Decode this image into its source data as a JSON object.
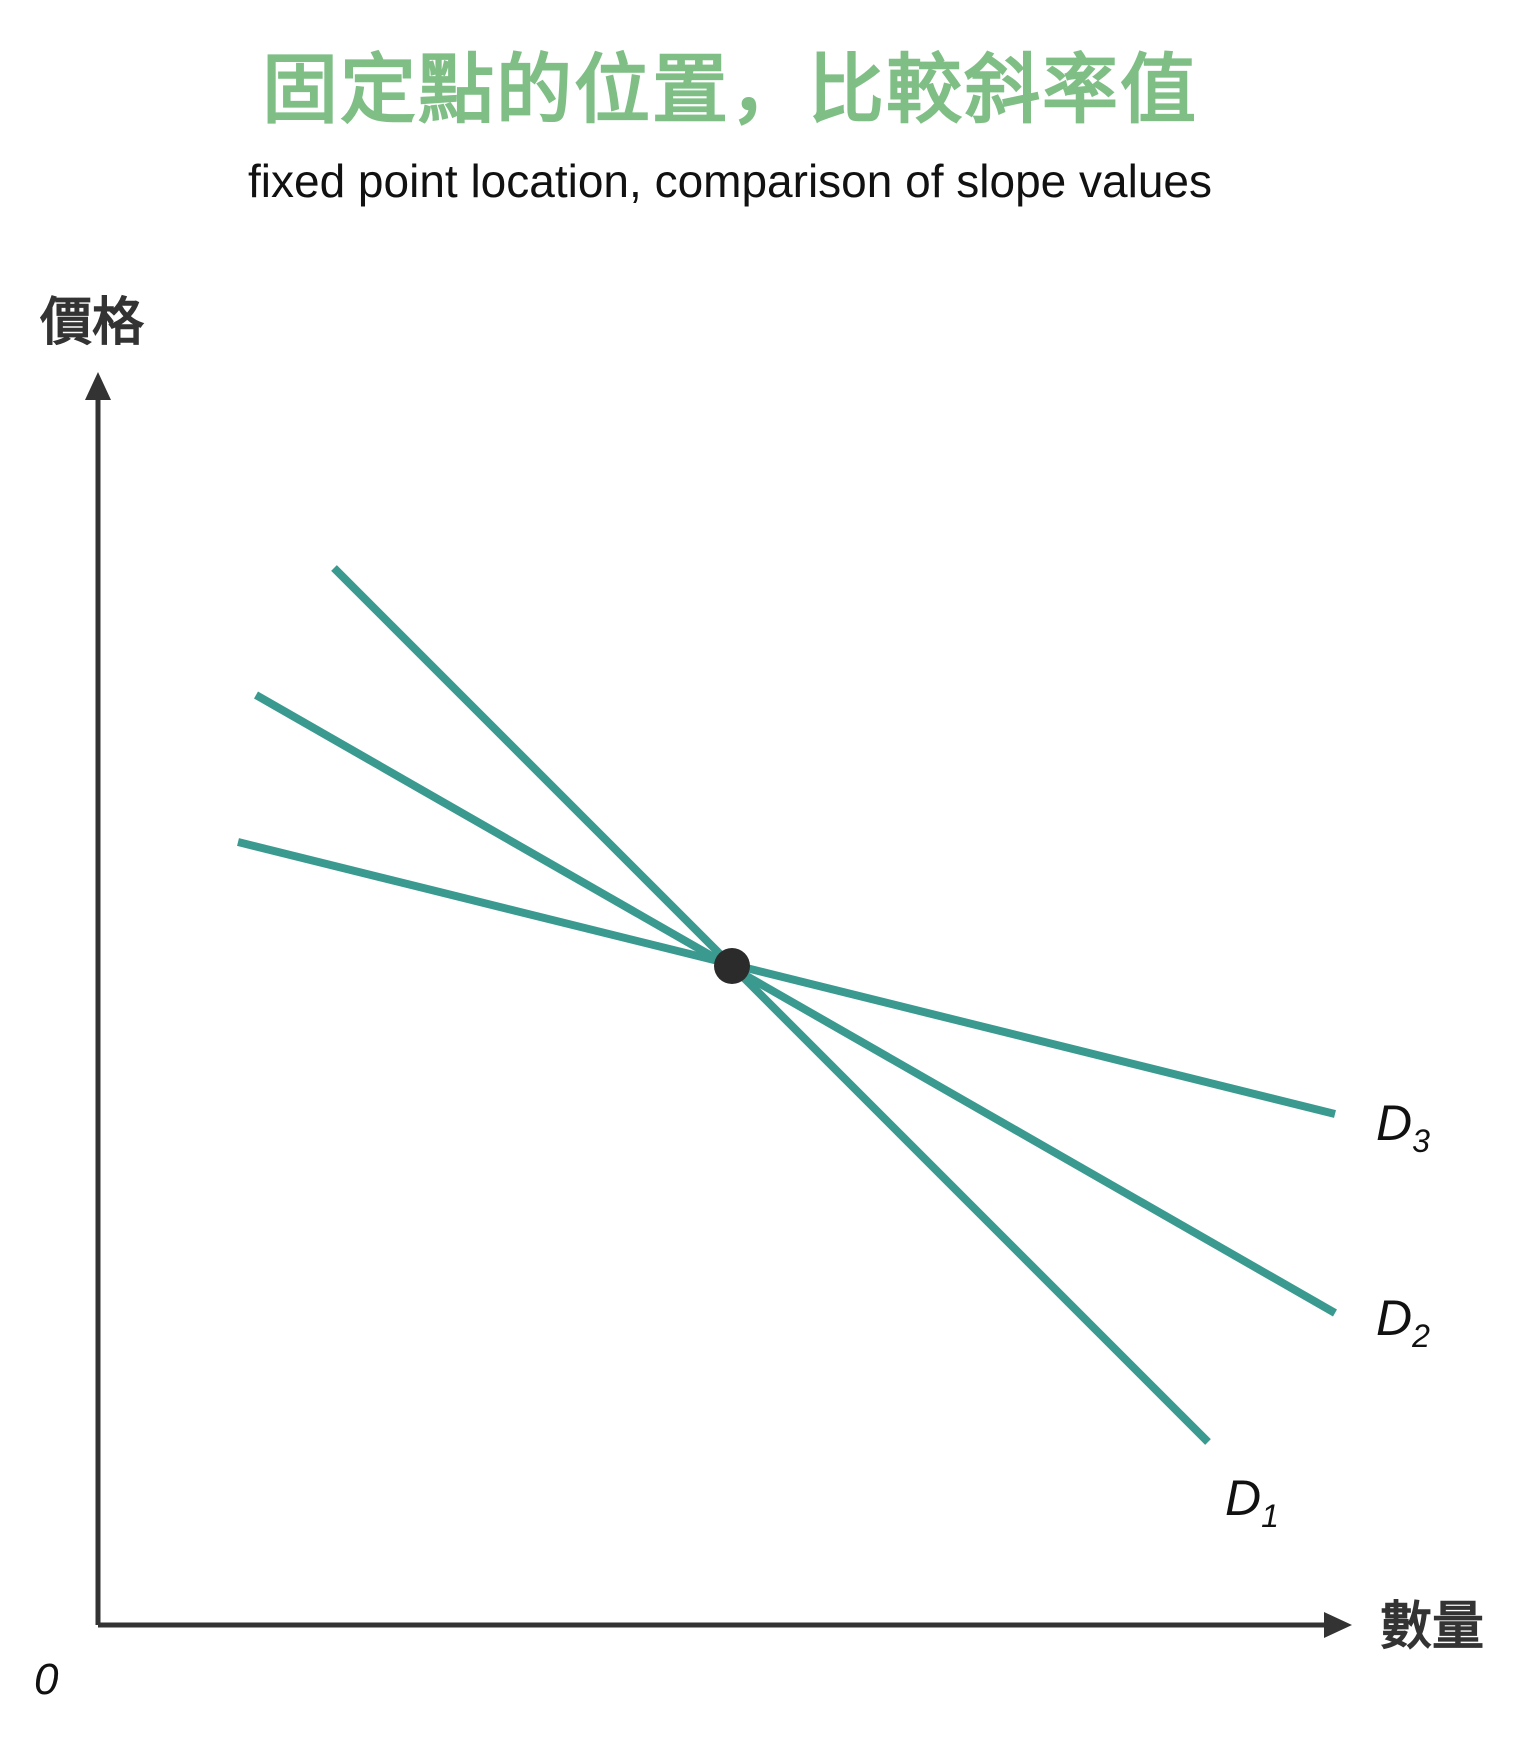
{
  "title": "固定點的位置，比較斜率值",
  "subtitle": "fixed point location, comparison of slope values",
  "y_axis_label": "價格",
  "x_axis_label": "數量",
  "origin_label": "0",
  "colors": {
    "title": "#7fbf86",
    "curve": "#3a9a90",
    "axis": "#333333",
    "point": "#2b2b2b"
  },
  "curves": [
    {
      "base": "D",
      "sub": "1"
    },
    {
      "base": "D",
      "sub": "2"
    },
    {
      "base": "D",
      "sub": "3"
    }
  ]
}
